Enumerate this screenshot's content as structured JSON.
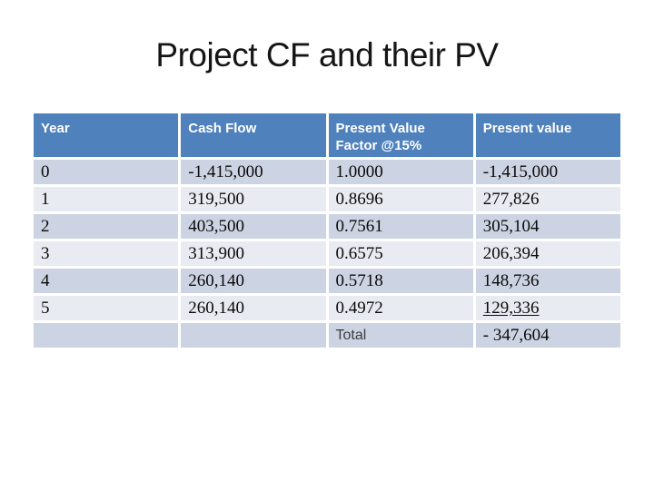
{
  "slide": {
    "title": "Project CF and their PV"
  },
  "colors": {
    "header_bg": "#4f81bd",
    "header_text": "#ffffff",
    "row_dark": "#ccd3e2",
    "row_light": "#e9ebf2",
    "background": "#ffffff"
  },
  "table": {
    "columns": [
      "Year",
      "Cash Flow",
      "Present Value Factor @15%",
      "Present value"
    ],
    "rows": [
      [
        "0",
        "-1,415,000",
        "1.0000",
        "-1,415,000"
      ],
      [
        "1",
        "319,500",
        "0.8696",
        "277,826"
      ],
      [
        "2",
        "403,500",
        "0.7561",
        "305,104"
      ],
      [
        "3",
        "313,900",
        "0.6575",
        "206,394"
      ],
      [
        "4",
        "260,140",
        "0.5718",
        "148,736"
      ],
      [
        "5",
        "260,140",
        "0.4972",
        "129,336"
      ]
    ],
    "total_row": {
      "label": "Total",
      "value": "- 347,604"
    }
  }
}
